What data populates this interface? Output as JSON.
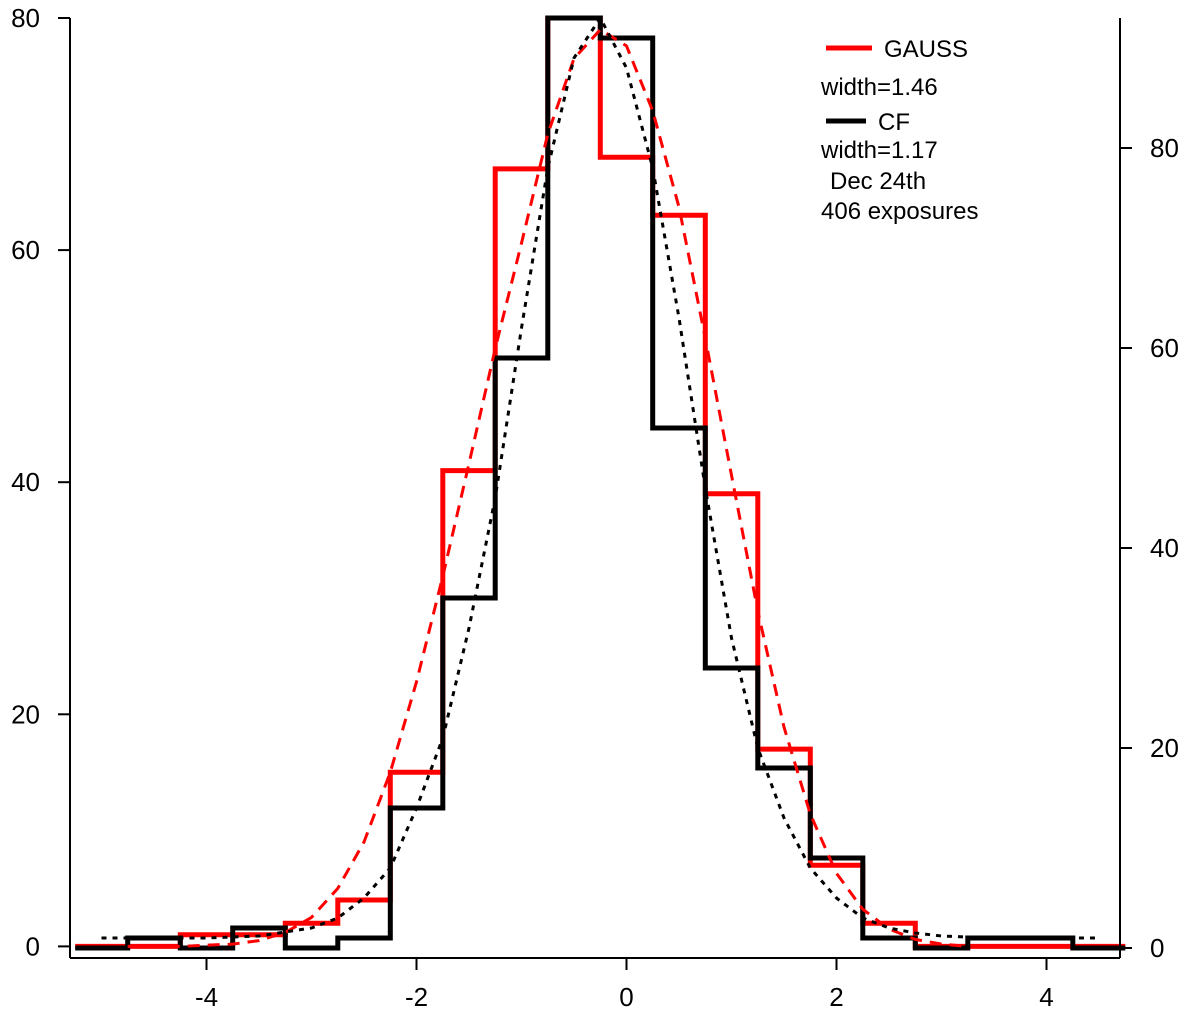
{
  "chart_data": {
    "type": "histogram",
    "title": "",
    "xlabel": "",
    "ylabel": "",
    "xlim": [
      -5.3,
      4.7
    ],
    "ylim_left": [
      -1,
      80
    ],
    "ylim_right": [
      -1,
      93
    ],
    "grid": false,
    "legend_placement": "top-right",
    "x_ticks": [
      -4,
      -2,
      0,
      2,
      4
    ],
    "x_tick_labels": [
      "-4",
      "-2",
      "0",
      "2",
      "4"
    ],
    "y_left_ticks": [
      0,
      20,
      40,
      60,
      80
    ],
    "y_left_tick_labels": [
      "0",
      "20",
      "40",
      "60",
      "80"
    ],
    "y_right_ticks": [
      0,
      20,
      40,
      60,
      80
    ],
    "y_right_tick_labels": [
      "0",
      "20",
      "40",
      "60",
      "80"
    ],
    "legend": {
      "items": [
        {
          "series": "GAUSS",
          "label": "GAUSS",
          "color": "#ff0000"
        },
        {
          "series": "CF",
          "label": "CF",
          "color": "#000000"
        }
      ],
      "notes": [
        "width=1.46",
        "width=1.17",
        "Dec 24th",
        "406 exposures"
      ]
    },
    "series": [
      {
        "name": "GAUSS",
        "axis": "left",
        "color": "#ff0000",
        "style": "histogram",
        "bin_edges": [
          -5.25,
          -4.75,
          -4.25,
          -3.75,
          -3.25,
          -2.75,
          -2.25,
          -1.75,
          -1.25,
          -0.75,
          -0.25,
          0.25,
          0.75,
          1.25,
          1.75,
          2.25,
          2.75,
          3.25,
          3.75,
          4.25,
          4.75
        ],
        "values": [
          0,
          0,
          1,
          1,
          2,
          4,
          15,
          41,
          67,
          80,
          68,
          63,
          39,
          17,
          7,
          2,
          0,
          0,
          0,
          0
        ]
      },
      {
        "name": "CF",
        "axis": "right",
        "color": "#000000",
        "style": "histogram",
        "bin_edges": [
          -5.25,
          -4.75,
          -4.25,
          -3.75,
          -3.25,
          -2.75,
          -2.25,
          -1.75,
          -1.25,
          -0.75,
          -0.25,
          0.25,
          0.75,
          1.25,
          1.75,
          2.25,
          2.75,
          3.25,
          3.75,
          4.25,
          4.75
        ],
        "values": [
          0,
          1,
          0,
          2,
          0,
          1,
          14,
          35,
          59,
          93,
          91,
          52,
          28,
          18,
          9,
          1,
          0,
          1,
          1,
          0
        ]
      },
      {
        "name": "GAUSS fit",
        "axis": "left",
        "color": "#ff0000",
        "style": "dashed",
        "x": [
          -4.75,
          -4.5,
          -4.25,
          -4.0,
          -3.75,
          -3.5,
          -3.25,
          -3.0,
          -2.75,
          -2.5,
          -2.25,
          -2.0,
          -1.75,
          -1.5,
          -1.25,
          -1.0,
          -0.75,
          -0.5,
          -0.25,
          0.0,
          0.25,
          0.5,
          0.75,
          1.0,
          1.25,
          1.5,
          1.75,
          2.0,
          2.25,
          2.5,
          2.75,
          3.0,
          3.25
        ],
        "y": [
          0.0,
          0.0,
          0.0,
          0.1,
          0.2,
          0.5,
          1.2,
          2.5,
          5.0,
          9.0,
          15.0,
          22.8,
          31.9,
          41.6,
          51.5,
          60.6,
          70.0,
          76.5,
          79.0,
          77.6,
          72.0,
          63.7,
          52.4,
          40.6,
          28.9,
          18.9,
          11.4,
          6.3,
          3.2,
          1.5,
          0.6,
          0.2,
          0.0
        ]
      },
      {
        "name": "CF fit",
        "axis": "right",
        "color": "#000000",
        "style": "dotted",
        "x": [
          -5.0,
          -4.5,
          -4.0,
          -3.5,
          -3.0,
          -2.75,
          -2.5,
          -2.25,
          -2.0,
          -1.75,
          -1.5,
          -1.25,
          -1.0,
          -0.75,
          -0.5,
          -0.25,
          0.0,
          0.25,
          0.5,
          0.75,
          1.0,
          1.25,
          1.5,
          1.75,
          2.0,
          2.25,
          2.5,
          2.75,
          3.0,
          3.5,
          4.0,
          4.5
        ],
        "y": [
          1.0,
          1.0,
          1.0,
          1.2,
          2.0,
          3.0,
          5.0,
          8.0,
          14.0,
          21.0,
          32.0,
          45.0,
          62.0,
          78.0,
          89.0,
          93.0,
          88.0,
          78.0,
          63.0,
          46.0,
          31.0,
          20.0,
          13.0,
          8.0,
          5.0,
          3.0,
          2.0,
          1.5,
          1.2,
          1.0,
          1.0,
          1.0
        ]
      }
    ]
  }
}
